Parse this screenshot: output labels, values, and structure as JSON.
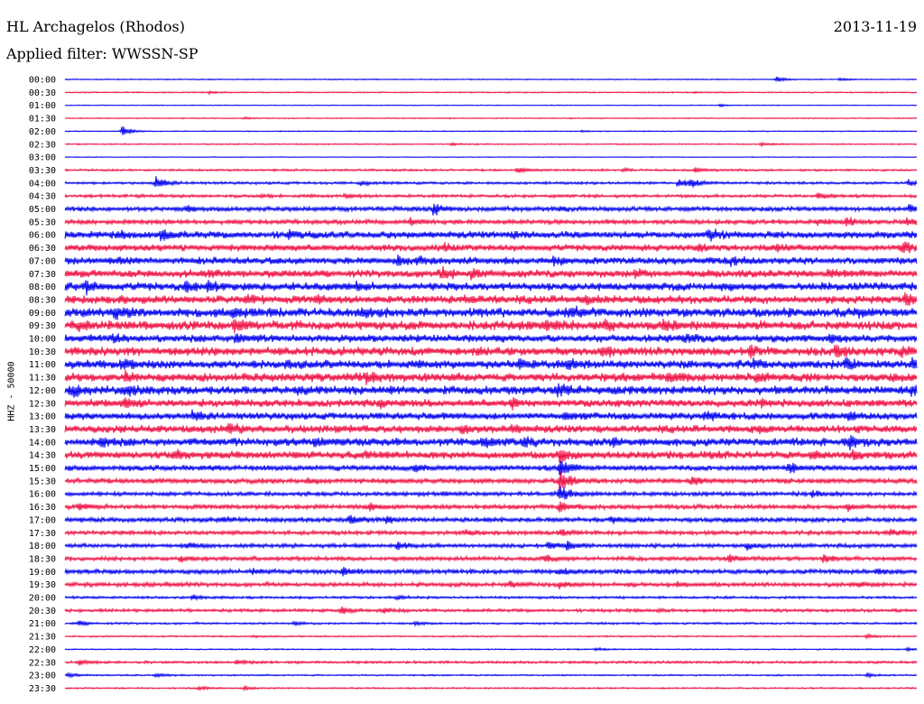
{
  "header": {
    "station": "HL Archagelos (Rhodos)",
    "date": "2013-11-19",
    "filter": "Applied filter: WWSSN-SP"
  },
  "chart_data": {
    "type": "line",
    "title": "HL Archagelos (Rhodos)",
    "subtitle": "Applied filter: WWSSN-SP",
    "ylabel": "HHZ - 50000",
    "xlabel": "",
    "grid": false,
    "line_colors": [
      "#0000ee",
      "#ee1144"
    ],
    "rows": [
      {
        "time": "00:00",
        "activity": 0.1,
        "events": [
          [
            860,
            0.55
          ],
          [
            930,
            0.25
          ]
        ]
      },
      {
        "time": "00:30",
        "activity": 0.12,
        "events": [
          [
            232,
            0.25
          ],
          [
            770,
            0.15
          ]
        ]
      },
      {
        "time": "01:00",
        "activity": 0.08,
        "events": [
          [
            797,
            0.25
          ]
        ]
      },
      {
        "time": "01:30",
        "activity": 0.1,
        "events": [
          [
            270,
            0.15
          ]
        ]
      },
      {
        "time": "02:00",
        "activity": 0.1,
        "events": [
          [
            135,
            1.1
          ],
          [
            645,
            0.15
          ]
        ]
      },
      {
        "time": "02:30",
        "activity": 0.12,
        "events": [
          [
            500,
            0.2
          ],
          [
            843,
            0.35
          ]
        ]
      },
      {
        "time": "03:00",
        "activity": 0.08,
        "events": []
      },
      {
        "time": "03:30",
        "activity": 0.2,
        "events": [
          [
            573,
            0.5
          ],
          [
            770,
            0.55
          ],
          [
            690,
            0.25
          ]
        ]
      },
      {
        "time": "04:00",
        "activity": 0.25,
        "events": [
          [
            172,
            1.3
          ],
          [
            400,
            0.35
          ],
          [
            752,
            0.85
          ],
          [
            765,
            0.7
          ],
          [
            1007,
            0.6
          ]
        ]
      },
      {
        "time": "04:30",
        "activity": 0.3,
        "events": [
          [
            383,
            0.45
          ],
          [
            906,
            0.45
          ],
          [
            290,
            0.25
          ]
        ]
      },
      {
        "time": "05:00",
        "activity": 0.45,
        "events": [
          [
            480,
            1.3
          ],
          [
            207,
            0.55
          ],
          [
            1007,
            0.7
          ],
          [
            620,
            0.4
          ]
        ]
      },
      {
        "time": "05:30",
        "activity": 0.45,
        "events": [
          [
            938,
            0.9
          ],
          [
            455,
            0.6
          ],
          [
            905,
            0.5
          ],
          [
            1005,
            0.6
          ]
        ]
      },
      {
        "time": "06:00",
        "activity": 0.7,
        "events": [
          [
            177,
            1.1
          ],
          [
            130,
            0.5
          ],
          [
            320,
            0.7
          ],
          [
            785,
            0.95
          ],
          [
            570,
            0.4
          ]
        ]
      },
      {
        "time": "06:30",
        "activity": 0.65,
        "events": [
          [
            1000,
            1.1
          ],
          [
            493,
            0.6
          ],
          [
            860,
            0.6
          ],
          [
            772,
            0.5
          ]
        ]
      },
      {
        "time": "07:00",
        "activity": 0.7,
        "events": [
          [
            440,
            0.7
          ],
          [
            462,
            0.6
          ],
          [
            613,
            0.85
          ],
          [
            810,
            0.6
          ],
          [
            130,
            0.45
          ]
        ]
      },
      {
        "time": "07:30",
        "activity": 0.75,
        "events": [
          [
            490,
            1.1
          ],
          [
            703,
            0.9
          ],
          [
            918,
            0.8
          ],
          [
            522,
            0.7
          ],
          [
            233,
            0.5
          ]
        ]
      },
      {
        "time": "08:00",
        "activity": 0.8,
        "events": [
          [
            95,
            0.9
          ],
          [
            230,
            0.9
          ],
          [
            205,
            0.7
          ],
          [
            395,
            0.45
          ],
          [
            800,
            0.4
          ]
        ]
      },
      {
        "time": "08:30",
        "activity": 0.8,
        "events": [
          [
            273,
            0.9
          ],
          [
            350,
            0.7
          ],
          [
            1003,
            0.85
          ],
          [
            648,
            0.6
          ],
          [
            515,
            0.5
          ]
        ]
      },
      {
        "time": "09:00",
        "activity": 0.9,
        "events": [
          [
            128,
            0.8
          ],
          [
            632,
            0.8
          ],
          [
            400,
            0.6
          ],
          [
            948,
            0.6
          ],
          [
            258,
            0.6
          ]
        ]
      },
      {
        "time": "09:30",
        "activity": 0.9,
        "events": [
          [
            605,
            1.1
          ],
          [
            260,
            1.0
          ],
          [
            670,
            0.8
          ],
          [
            735,
            0.7
          ],
          [
            85,
            0.5
          ]
        ]
      },
      {
        "time": "10:00",
        "activity": 0.75,
        "events": [
          [
            262,
            0.9
          ],
          [
            125,
            0.5
          ],
          [
            760,
            0.5
          ],
          [
            918,
            0.6
          ]
        ]
      },
      {
        "time": "10:30",
        "activity": 0.85,
        "events": [
          [
            925,
            1.0
          ],
          [
            830,
            0.8
          ],
          [
            667,
            0.7
          ],
          [
            530,
            0.5
          ],
          [
            1000,
            0.7
          ]
        ]
      },
      {
        "time": "11:00",
        "activity": 0.85,
        "events": [
          [
            135,
            0.9
          ],
          [
            575,
            0.7
          ],
          [
            628,
            0.7
          ],
          [
            937,
            0.8
          ],
          [
            1010,
            0.8
          ],
          [
            835,
            0.7
          ]
        ]
      },
      {
        "time": "11:30",
        "activity": 0.85,
        "events": [
          [
            405,
            0.9
          ],
          [
            740,
            0.9
          ],
          [
            138,
            0.8
          ],
          [
            838,
            0.8
          ]
        ]
      },
      {
        "time": "12:00",
        "activity": 0.85,
        "events": [
          [
            80,
            0.9
          ],
          [
            618,
            1.1
          ],
          [
            140,
            0.8
          ],
          [
            1010,
            0.8
          ],
          [
            330,
            0.6
          ]
        ]
      },
      {
        "time": "12:30",
        "activity": 0.75,
        "events": [
          [
            568,
            0.8
          ],
          [
            420,
            0.6
          ],
          [
            843,
            0.5
          ],
          [
            137,
            0.9
          ],
          [
            60,
            0.5
          ]
        ]
      },
      {
        "time": "13:00",
        "activity": 0.7,
        "events": [
          [
            625,
            0.8
          ],
          [
            213,
            0.7
          ],
          [
            780,
            0.7
          ],
          [
            940,
            0.7
          ]
        ]
      },
      {
        "time": "13:30",
        "activity": 0.75,
        "events": [
          [
            253,
            1.0
          ],
          [
            510,
            0.5
          ],
          [
            840,
            0.6
          ],
          [
            567,
            0.5
          ]
        ]
      },
      {
        "time": "14:00",
        "activity": 0.8,
        "events": [
          [
            110,
            0.9
          ],
          [
            535,
            0.8
          ],
          [
            580,
            0.8
          ],
          [
            940,
            1.0
          ],
          [
            680,
            0.6
          ],
          [
            350,
            0.6
          ]
        ]
      },
      {
        "time": "14:30",
        "activity": 0.75,
        "events": [
          [
            620,
            1.3
          ],
          [
            900,
            0.8
          ],
          [
            195,
            0.7
          ],
          [
            945,
            0.7
          ],
          [
            405,
            0.5
          ]
        ]
      },
      {
        "time": "15:00",
        "activity": 0.55,
        "events": [
          [
            620,
            2.0
          ],
          [
            460,
            0.9
          ],
          [
            875,
            1.1
          ]
        ]
      },
      {
        "time": "15:30",
        "activity": 0.5,
        "events": [
          [
            620,
            2.2
          ],
          [
            766,
            0.9
          ],
          [
            340,
            0.4
          ]
        ]
      },
      {
        "time": "16:00",
        "activity": 0.4,
        "events": [
          [
            620,
            1.8
          ],
          [
            900,
            0.6
          ],
          [
            490,
            0.4
          ]
        ]
      },
      {
        "time": "16:30",
        "activity": 0.45,
        "events": [
          [
            620,
            1.1
          ],
          [
            88,
            0.6
          ],
          [
            410,
            0.6
          ],
          [
            940,
            0.5
          ]
        ]
      },
      {
        "time": "17:00",
        "activity": 0.45,
        "events": [
          [
            387,
            0.9
          ],
          [
            428,
            0.7
          ],
          [
            677,
            0.7
          ],
          [
            247,
            0.4
          ]
        ]
      },
      {
        "time": "17:30",
        "activity": 0.4,
        "events": [
          [
            986,
            0.8
          ],
          [
            515,
            0.4
          ],
          [
            620,
            0.6
          ]
        ]
      },
      {
        "time": "18:00",
        "activity": 0.4,
        "events": [
          [
            607,
            0.8
          ],
          [
            628,
            0.8
          ],
          [
            208,
            0.6
          ],
          [
            440,
            0.7
          ],
          [
            828,
            0.5
          ]
        ]
      },
      {
        "time": "18:30",
        "activity": 0.4,
        "events": [
          [
            808,
            0.9
          ],
          [
            603,
            0.6
          ],
          [
            912,
            0.8
          ],
          [
            200,
            0.5
          ]
        ]
      },
      {
        "time": "19:00",
        "activity": 0.45,
        "events": [
          [
            380,
            0.8
          ],
          [
            280,
            0.5
          ],
          [
            620,
            0.6
          ],
          [
            970,
            0.5
          ]
        ]
      },
      {
        "time": "19:30",
        "activity": 0.4,
        "events": [
          [
            620,
            0.8
          ],
          [
            565,
            0.5
          ],
          [
            952,
            0.6
          ],
          [
            750,
            0.4
          ],
          [
            183,
            0.4
          ]
        ]
      },
      {
        "time": "20:00",
        "activity": 0.25,
        "events": [
          [
            213,
            0.5
          ],
          [
            440,
            0.3
          ]
        ]
      },
      {
        "time": "20:30",
        "activity": 0.3,
        "events": [
          [
            378,
            0.7
          ],
          [
            425,
            0.4
          ],
          [
            730,
            0.25
          ]
        ]
      },
      {
        "time": "21:00",
        "activity": 0.2,
        "events": [
          [
            87,
            0.5
          ],
          [
            325,
            0.3
          ],
          [
            460,
            0.3
          ]
        ]
      },
      {
        "time": "21:30",
        "activity": 0.15,
        "events": [
          [
            960,
            0.4
          ],
          [
            280,
            0.2
          ]
        ]
      },
      {
        "time": "22:00",
        "activity": 0.12,
        "events": [
          [
            660,
            0.3
          ],
          [
            1005,
            0.3
          ]
        ]
      },
      {
        "time": "22:30",
        "activity": 0.25,
        "events": [
          [
            88,
            0.5
          ],
          [
            262,
            0.4
          ]
        ]
      },
      {
        "time": "23:00",
        "activity": 0.15,
        "events": [
          [
            75,
            0.4
          ],
          [
            172,
            0.4
          ],
          [
            960,
            0.35
          ]
        ]
      },
      {
        "time": "23:30",
        "activity": 0.15,
        "events": [
          [
            220,
            0.4
          ],
          [
            270,
            0.35
          ]
        ]
      }
    ]
  }
}
